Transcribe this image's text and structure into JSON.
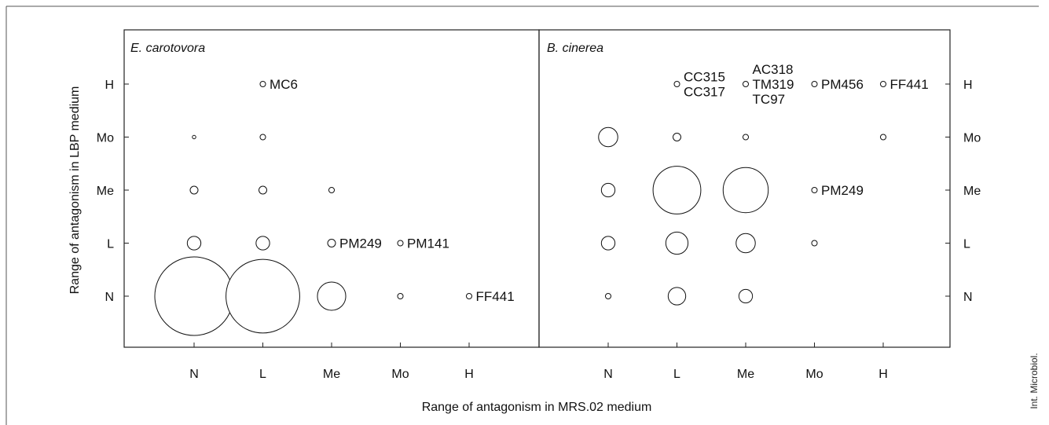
{
  "chart_data": {
    "type": "scatter",
    "subtype": "bubble",
    "xlabel": "Range of antagonism in MRS.02 medium",
    "ylabel": "Range of antagonism in LBP medium",
    "x_categories": [
      "N",
      "L",
      "Me",
      "Mo",
      "H"
    ],
    "y_categories": [
      "N",
      "L",
      "Me",
      "Mo",
      "H"
    ],
    "credit": "Int. Microbiol.",
    "panels": [
      {
        "title": "E. carotovora",
        "points": [
          {
            "x": "N",
            "y": "N",
            "size": 100
          },
          {
            "x": "L",
            "y": "N",
            "size": 88
          },
          {
            "x": "Me",
            "y": "N",
            "size": 13
          },
          {
            "x": "Mo",
            "y": "N",
            "size": 0.5
          },
          {
            "x": "H",
            "y": "N",
            "size": 0.5,
            "label": "FF441"
          },
          {
            "x": "N",
            "y": "L",
            "size": 3
          },
          {
            "x": "L",
            "y": "L",
            "size": 3
          },
          {
            "x": "Me",
            "y": "L",
            "size": 1,
            "label": "PM249"
          },
          {
            "x": "Mo",
            "y": "L",
            "size": 0.5,
            "label": "PM141"
          },
          {
            "x": "N",
            "y": "Me",
            "size": 1
          },
          {
            "x": "L",
            "y": "Me",
            "size": 1
          },
          {
            "x": "Me",
            "y": "Me",
            "size": 0.5
          },
          {
            "x": "N",
            "y": "Mo",
            "size": 0.2
          },
          {
            "x": "L",
            "y": "Mo",
            "size": 0.5
          },
          {
            "x": "L",
            "y": "H",
            "size": 0.5,
            "label": "MC6"
          }
        ]
      },
      {
        "title": "B. cinerea",
        "points": [
          {
            "x": "N",
            "y": "N",
            "size": 0.5
          },
          {
            "x": "L",
            "y": "N",
            "size": 5
          },
          {
            "x": "Me",
            "y": "N",
            "size": 3
          },
          {
            "x": "N",
            "y": "L",
            "size": 3
          },
          {
            "x": "L",
            "y": "L",
            "size": 8
          },
          {
            "x": "Me",
            "y": "L",
            "size": 6
          },
          {
            "x": "Mo",
            "y": "L",
            "size": 0.5
          },
          {
            "x": "N",
            "y": "Me",
            "size": 3
          },
          {
            "x": "L",
            "y": "Me",
            "size": 37
          },
          {
            "x": "Me",
            "y": "Me",
            "size": 33
          },
          {
            "x": "Mo",
            "y": "Me",
            "size": 0.5,
            "label": "PM249"
          },
          {
            "x": "N",
            "y": "Mo",
            "size": 6
          },
          {
            "x": "L",
            "y": "Mo",
            "size": 1
          },
          {
            "x": "Me",
            "y": "Mo",
            "size": 0.5
          },
          {
            "x": "H",
            "y": "Mo",
            "size": 0.5
          },
          {
            "x": "L",
            "y": "H",
            "size": 0.5,
            "label": "CC315\nCC317"
          },
          {
            "x": "Me",
            "y": "H",
            "size": 0.5,
            "label": "AC318\nTM319\nTC97"
          },
          {
            "x": "Mo",
            "y": "H",
            "size": 0.5,
            "label": "PM456"
          },
          {
            "x": "H",
            "y": "H",
            "size": 0.5,
            "label": "FF441"
          }
        ]
      }
    ]
  }
}
